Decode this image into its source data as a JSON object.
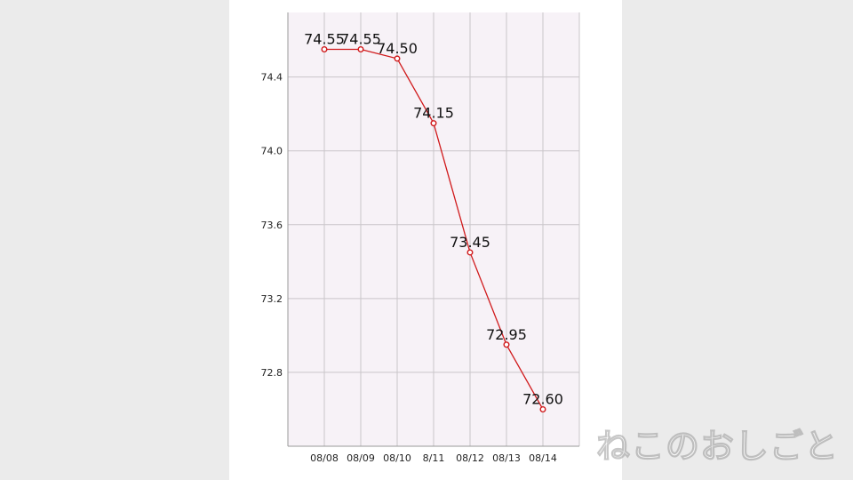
{
  "chart_data": {
    "type": "line",
    "categories": [
      "08/08",
      "08/09",
      "08/10",
      "8/11",
      "08/12",
      "08/13",
      "08/14"
    ],
    "series": [
      {
        "values": [
          74.55,
          74.55,
          74.5,
          74.15,
          73.45,
          72.95,
          72.6
        ]
      }
    ],
    "data_labels": [
      "74.55",
      "74.55",
      "74.50",
      "74.15",
      "73.45",
      "72.95",
      "72.60"
    ],
    "yticks": [
      72.8,
      73.2,
      73.6,
      74.0,
      74.4
    ],
    "ytick_labels": [
      "72.8",
      "73.2",
      "73.6",
      "74.0",
      "74.4"
    ],
    "ylim": [
      72.4,
      74.75
    ],
    "grid": true,
    "legend": "none",
    "colors": {
      "line": "#d0191b",
      "plot_bg": "#f7f2f7",
      "grid": "#c9c5c9",
      "axis": "#999999"
    }
  },
  "watermark": "ねこのおしごと"
}
